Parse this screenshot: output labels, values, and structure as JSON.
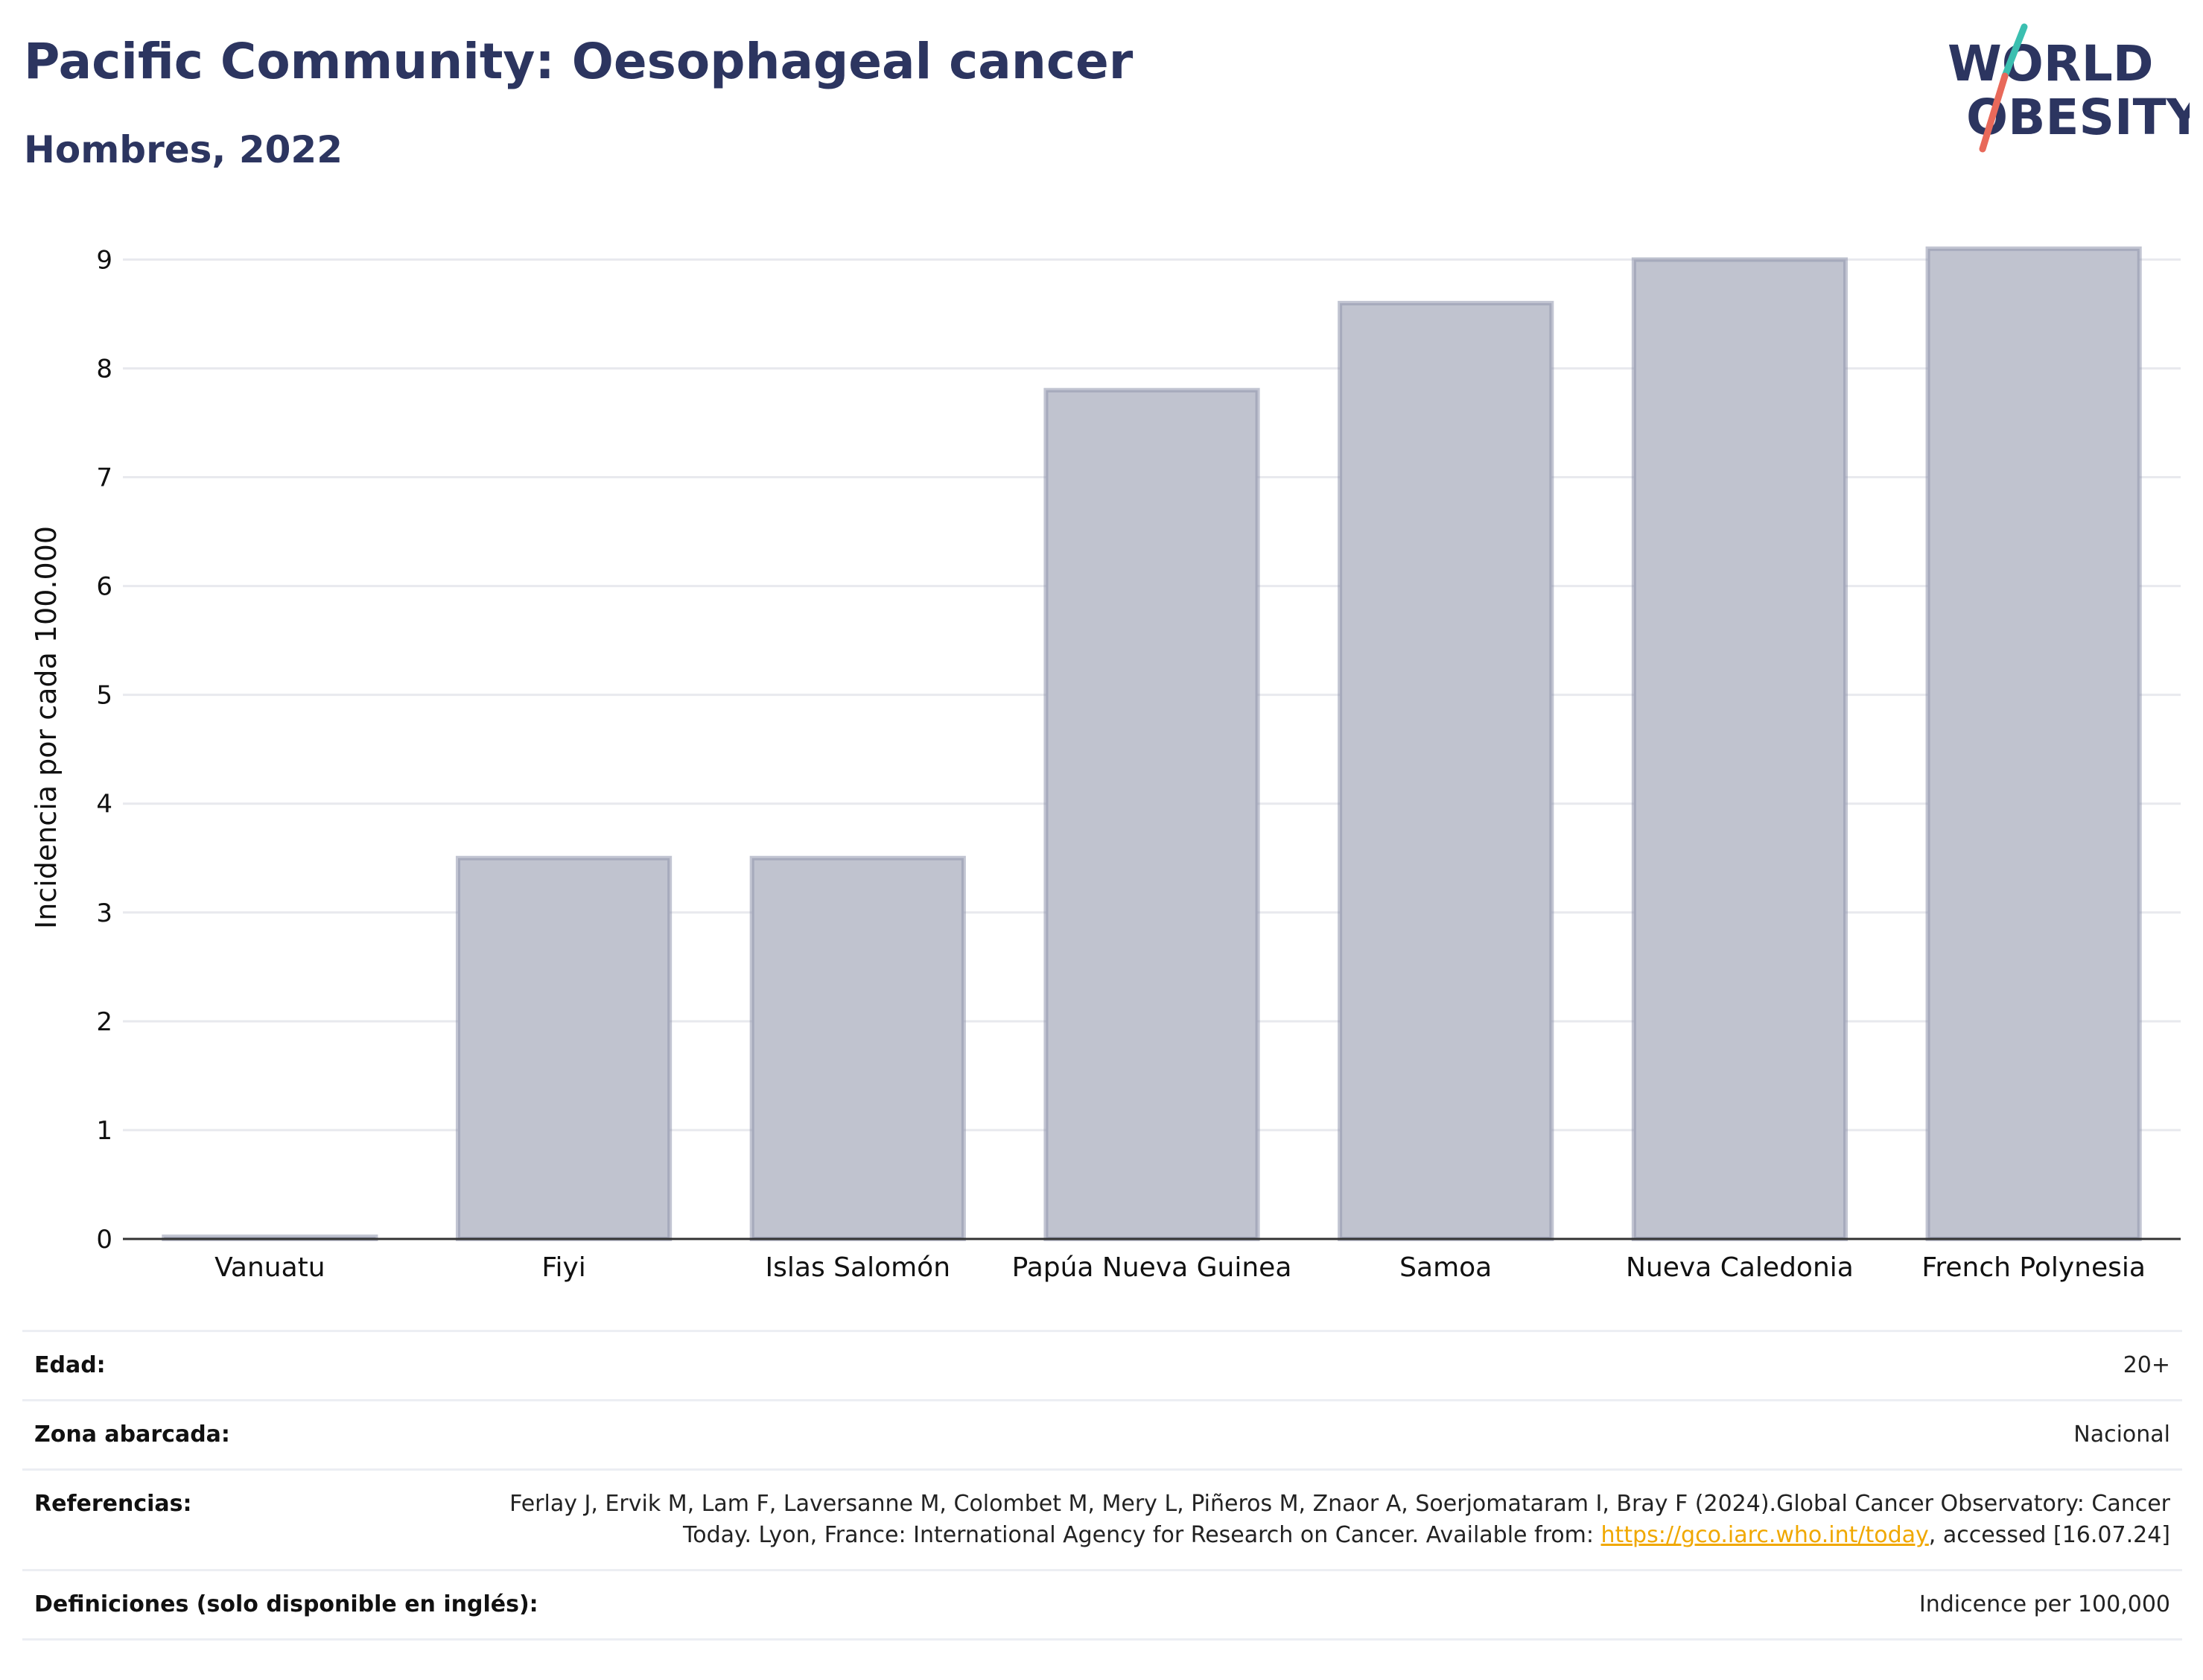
{
  "header": {
    "title": "Pacific Community: Oesophageal cancer",
    "subtitle": "Hombres, 2022"
  },
  "logo": {
    "line1": "WORLD",
    "line2": "OBESITY",
    "text_color": "#2c3560",
    "slash_color_top": "#3bbfb0",
    "slash_color_bottom": "#e8695a"
  },
  "chart_data": {
    "type": "bar",
    "categories": [
      "Vanuatu",
      "Fiyi",
      "Islas Salomón",
      "Papúa Nueva Guinea",
      "Samoa",
      "Nueva Caledonia",
      "French Polynesia"
    ],
    "values": [
      0.02,
      3.5,
      3.5,
      7.8,
      8.6,
      9.0,
      9.1
    ],
    "ylabel": "Incidencia por cada 100.000",
    "xlabel": "",
    "ylim": [
      0,
      9.4
    ],
    "yticks": [
      0,
      1,
      2,
      3,
      4,
      5,
      6,
      7,
      8,
      9
    ],
    "grid": true,
    "bar_fill": "#c0c3cf",
    "bar_stroke": "#8f95ad"
  },
  "meta": {
    "age_label": "Edad:",
    "age_value": "20+",
    "zone_label": "Zona abarcada:",
    "zone_value": "Nacional",
    "refs_label": "Referencias:",
    "refs_text_1": "Ferlay J, Ervik M, Lam F, Laversanne M, Colombet M, Mery L, Piñeros M, Znaor A, Soerjomataram I, Bray F (2024).Global Cancer Observatory: Cancer Today. Lyon, France: International Agency for Research on Cancer. Available from: ",
    "refs_link": "https://gco.iarc.who.int/today",
    "refs_text_2": ", accessed [16.07.24]",
    "defs_label": "Definiciones (solo disponible en inglés):",
    "defs_value": "Indicence per 100,000"
  }
}
